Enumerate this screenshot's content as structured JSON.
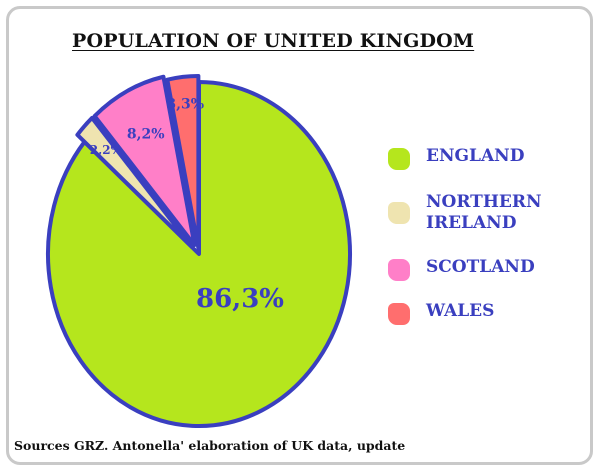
{
  "chart_data": {
    "type": "pie",
    "title": "POPULATION OF UNITED KINGDOM",
    "slices": [
      {
        "label": "ENGLAND",
        "value": 86.3,
        "display": "86,3%",
        "color": "#b5e61d"
      },
      {
        "label": "NORTHERN IRELAND",
        "value": 2.2,
        "display": "2,2%",
        "color": "#efe4b0"
      },
      {
        "label": "SCOTLAND",
        "value": 8.2,
        "display": "8,2%",
        "color": "#ff7fc8"
      },
      {
        "label": "WALES",
        "value": 3.3,
        "display": "3,3%",
        "color": "#ff6e6e"
      }
    ],
    "legend_position": "right",
    "source": "Sources GRZ. Antonella' elaboration of UK data, update"
  },
  "colors": {
    "outline": "#3a3fbf",
    "label": "#3a3fbf"
  },
  "legend": {
    "items": [
      {
        "label": "ENGLAND"
      },
      {
        "label": "NORTHERN IRELAND"
      },
      {
        "label": "SCOTLAND"
      },
      {
        "label": "WALES"
      }
    ]
  }
}
